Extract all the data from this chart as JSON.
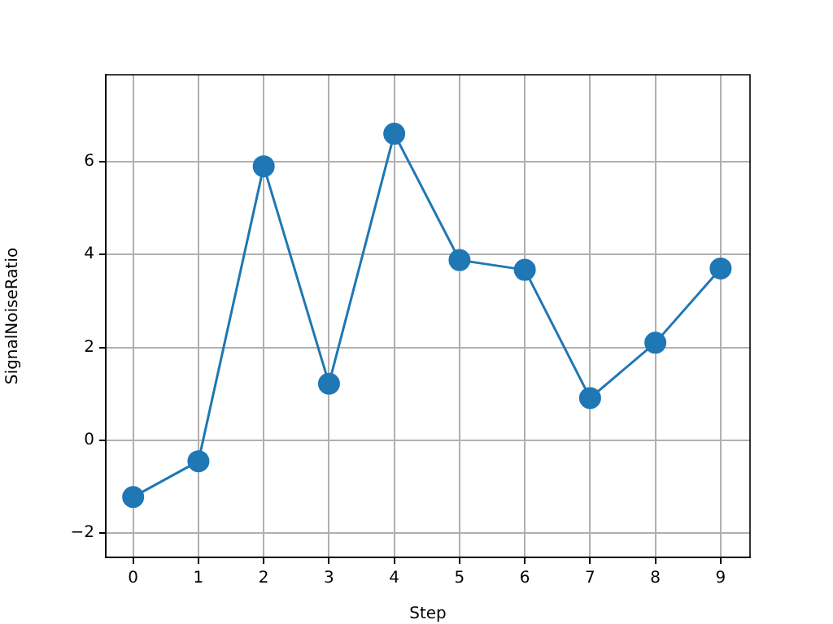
{
  "chart_data": {
    "type": "line",
    "xlabel": "Step",
    "ylabel": "SignalNoiseRatio",
    "x": [
      0,
      1,
      2,
      3,
      4,
      5,
      6,
      7,
      8,
      9
    ],
    "series": [
      {
        "color": "#1f77b4",
        "values": [
          -1.22,
          -0.45,
          5.9,
          1.22,
          6.6,
          3.88,
          3.67,
          0.91,
          2.1,
          3.7
        ]
      }
    ],
    "xlim": [
      -0.42,
      9.45
    ],
    "xticks": [
      0,
      1,
      2,
      3,
      4,
      5,
      6,
      7,
      8,
      9
    ],
    "ylim": [
      -2.52,
      7.87
    ],
    "yticks": [
      -2,
      0,
      2,
      4,
      6
    ],
    "grid": true,
    "marker": "circle",
    "line_style": "solid",
    "legend": false
  }
}
